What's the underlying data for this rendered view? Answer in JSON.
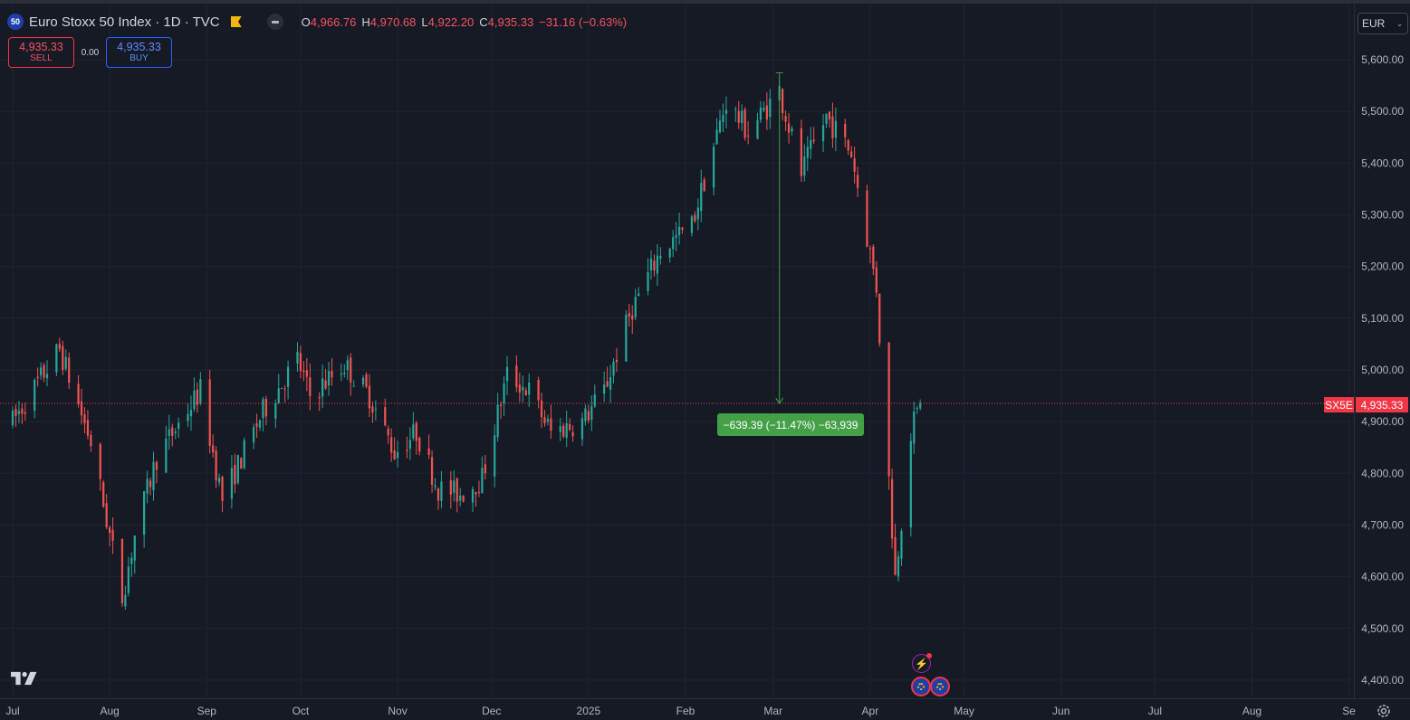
{
  "header": {
    "symbol_badge": "50",
    "title": "Euro Stoxx 50 Index · 1D · TVC",
    "ohlc": {
      "o_label": "O",
      "o_value": "4,966.76",
      "h_label": "H",
      "h_value": "4,970.68",
      "l_label": "L",
      "l_value": "4,922.20",
      "c_label": "C",
      "c_value": "4,935.33",
      "change": "−31.16 (−0.63%)"
    }
  },
  "trade": {
    "sell_price": "4,935.33",
    "sell_label": "SELL",
    "spread": "0.00",
    "buy_price": "4,935.33",
    "buy_label": "BUY"
  },
  "currency": {
    "value": "EUR"
  },
  "price_tag": {
    "symbol": "SX5E",
    "value": "4,935.33"
  },
  "measure": {
    "label": "−639.39 (−11.47%) −63,939"
  },
  "colors": {
    "up": "#26a69a",
    "down": "#ef5350",
    "background": "#161a25",
    "grid": "#1f2430",
    "measure": "#43a047",
    "price_line": "#f23645"
  },
  "icons": [
    "tradingview-logo-icon",
    "flash-event-icon",
    "eu-flag-event-icon",
    "settings-icon",
    "chevron-down-icon"
  ],
  "chart_data": {
    "type": "candlestick",
    "title": "Euro Stoxx 50 Index · 1D · TVC",
    "y_ticks": [
      5600,
      5500,
      5400,
      5300,
      5200,
      5100,
      5000,
      4900,
      4800,
      4700,
      4600,
      4500,
      4400
    ],
    "y_tick_labels": [
      "5,600.00",
      "5,500.00",
      "5,400.00",
      "5,300.00",
      "5,200.00",
      "5,100.00",
      "5,000.00",
      "4,900.00",
      "4,800.00",
      "4,700.00",
      "4,600.00",
      "4,500.00",
      "4,400.00"
    ],
    "ylim": [
      4390,
      5665
    ],
    "x_ticks": [
      {
        "label": "Jul",
        "date": "2024-07-01"
      },
      {
        "label": "Aug",
        "date": "2024-08-01"
      },
      {
        "label": "Sep",
        "date": "2024-09-01"
      },
      {
        "label": "Oct",
        "date": "2024-10-01"
      },
      {
        "label": "Nov",
        "date": "2024-11-01"
      },
      {
        "label": "Dec",
        "date": "2024-12-01"
      },
      {
        "label": "2025",
        "date": "2025-01-01"
      },
      {
        "label": "Feb",
        "date": "2025-02-01"
      },
      {
        "label": "Mar",
        "date": "2025-03-01"
      },
      {
        "label": "Apr",
        "date": "2025-04-01"
      },
      {
        "label": "May",
        "date": "2025-05-01"
      },
      {
        "label": "Jun",
        "date": "2025-06-01"
      },
      {
        "label": "Jul",
        "date": "2025-07-01"
      },
      {
        "label": "Aug",
        "date": "2025-08-01"
      },
      {
        "label": "Se",
        "date": "2025-09-01"
      }
    ],
    "last_price": 4935.33,
    "measurement": {
      "from_date": "2025-03-03",
      "from": 5574.72,
      "to": 4935.33,
      "change": -639.39,
      "change_pct": -11.47
    },
    "keypoints": [
      {
        "date": "2024-07-01",
        "close": 4900
      },
      {
        "date": "2024-07-16",
        "close": 5040
      },
      {
        "date": "2024-07-26",
        "close": 4860
      },
      {
        "date": "2024-08-05",
        "close": 4560
      },
      {
        "date": "2024-08-09",
        "close": 4680
      },
      {
        "date": "2024-08-16",
        "close": 4830
      },
      {
        "date": "2024-08-30",
        "close": 4960
      },
      {
        "date": "2024-09-06",
        "close": 4750
      },
      {
        "date": "2024-09-19",
        "close": 4920
      },
      {
        "date": "2024-09-30",
        "close": 5020
      },
      {
        "date": "2024-10-04",
        "close": 4950
      },
      {
        "date": "2024-10-15",
        "close": 5010
      },
      {
        "date": "2024-10-23",
        "close": 4950
      },
      {
        "date": "2024-10-31",
        "close": 4840
      },
      {
        "date": "2024-11-07",
        "close": 4880
      },
      {
        "date": "2024-11-14",
        "close": 4770
      },
      {
        "date": "2024-11-21",
        "close": 4760
      },
      {
        "date": "2024-11-28",
        "close": 4790
      },
      {
        "date": "2024-12-06",
        "close": 4990
      },
      {
        "date": "2024-12-13",
        "close": 4960
      },
      {
        "date": "2024-12-20",
        "close": 4880
      },
      {
        "date": "2024-12-30",
        "close": 4900
      },
      {
        "date": "2025-01-06",
        "close": 4960
      },
      {
        "date": "2025-01-15",
        "close": 5120
      },
      {
        "date": "2025-01-24",
        "close": 5230
      },
      {
        "date": "2025-02-03",
        "close": 5280
      },
      {
        "date": "2025-02-14",
        "close": 5520
      },
      {
        "date": "2025-02-21",
        "close": 5460
      },
      {
        "date": "2025-03-03",
        "close": 5540
      },
      {
        "date": "2025-03-10",
        "close": 5380
      },
      {
        "date": "2025-03-18",
        "close": 5490
      },
      {
        "date": "2025-03-26",
        "close": 5420
      },
      {
        "date": "2025-04-03",
        "close": 5160
      },
      {
        "date": "2025-04-09",
        "close": 4600
      },
      {
        "date": "2025-04-14",
        "close": 4880
      },
      {
        "date": "2025-04-17",
        "close": 4935.33
      }
    ]
  }
}
